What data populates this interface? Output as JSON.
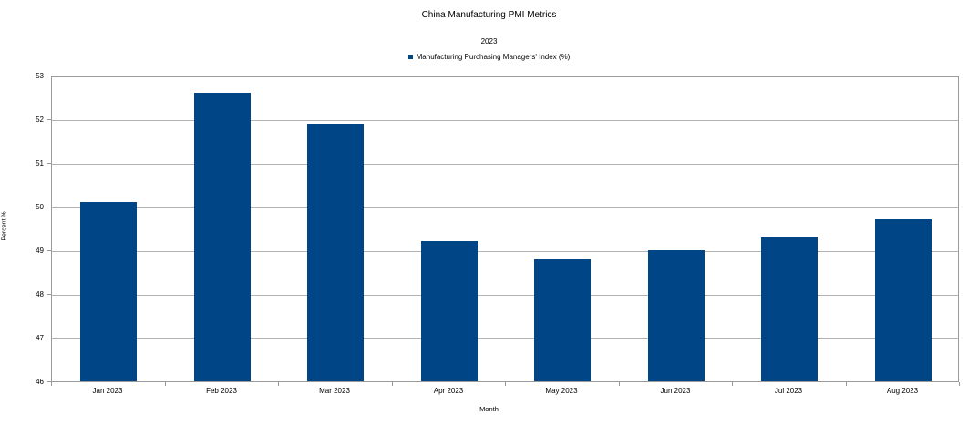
{
  "chart": {
    "title": "China Manufacturing PMI Metrics",
    "subtitle": "2023",
    "legend_label": "Manufacturing Purchasing Managers' Index (%)",
    "x_axis_title": "Month",
    "y_axis_title": "Percent %"
  },
  "chart_data": {
    "type": "bar",
    "title": "China Manufacturing PMI Metrics",
    "subtitle": "2023",
    "categories": [
      "Jan 2023",
      "Feb 2023",
      "Mar 2023",
      "Apr 2023",
      "May 2023",
      "Jun 2023",
      "Jul 2023",
      "Aug 2023"
    ],
    "series": [
      {
        "name": "Manufacturing Purchasing Managers' Index (%)",
        "values": [
          50.1,
          52.6,
          51.9,
          49.2,
          48.8,
          49.0,
          49.3,
          49.7
        ]
      }
    ],
    "xlabel": "Month",
    "ylabel": "Percent %",
    "ylim": [
      46,
      53
    ],
    "yticks": [
      46,
      47,
      48,
      49,
      50,
      51,
      52,
      53
    ],
    "grid": true,
    "legend_position": "top-center",
    "bar_color": "#004586",
    "gridline_color": "#b3b3b3",
    "axis_color": "#9a9a9a"
  }
}
